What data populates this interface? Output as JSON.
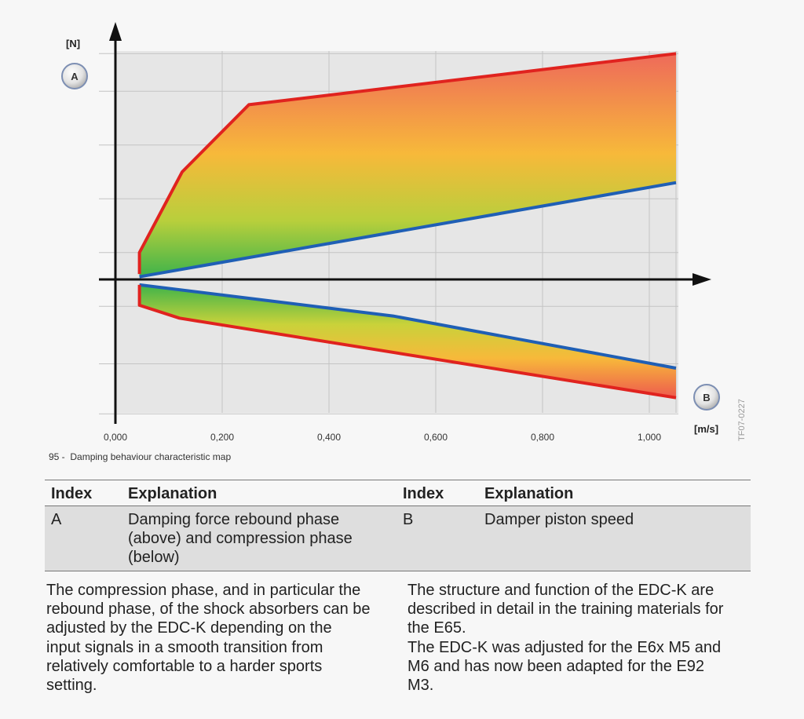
{
  "figure": {
    "number": "95 -",
    "caption": "Damping behaviour characteristic map",
    "reference_code": "TF07-0227"
  },
  "chart_data": {
    "type": "area",
    "y_unit_label": "[N]",
    "x_unit_label": "[m/s]",
    "axis_markers": {
      "y": "A",
      "x": "B"
    },
    "x_ticks": [
      "0,000",
      "0,200",
      "0,400",
      "0,600",
      "0,800",
      "1,000"
    ],
    "xlim": [
      0,
      1.05
    ],
    "ylim": [
      -2.5,
      4.2
    ],
    "grid": true,
    "series": [
      {
        "name": "rebound-upper",
        "color": "#e0231f",
        "x": [
          0.045,
          0.045,
          0.125,
          0.25,
          1.05
        ],
        "y": [
          0.1,
          0.5,
          2.0,
          3.25,
          4.2
        ]
      },
      {
        "name": "rebound-lower",
        "color": "#1f5fb5",
        "x": [
          0.045,
          1.05
        ],
        "y": [
          0.05,
          1.8
        ]
      },
      {
        "name": "compression-upper",
        "color": "#1f5fb5",
        "x": [
          0.045,
          0.52,
          1.05
        ],
        "y": [
          -0.1,
          -0.68,
          -1.65
        ]
      },
      {
        "name": "compression-lower",
        "color": "#e0231f",
        "x": [
          0.045,
          0.045,
          0.12,
          1.05
        ],
        "y": [
          -0.1,
          -0.48,
          -0.72,
          -2.2
        ]
      }
    ]
  },
  "legend_table": {
    "headers": [
      "Index",
      "Explanation",
      "Index",
      "Explanation"
    ],
    "rows": [
      [
        "A",
        "Damping force rebound phase (above) and compression phase (below)",
        "B",
        "Damper piston speed"
      ]
    ]
  },
  "body": {
    "left": "The compression phase, and in particular the\nrebound phase, of the shock absorbers can be\nadjusted by the EDC-K depending on the\ninput signals in a smooth transition from\nrelatively comfortable to a harder sports\nsetting.",
    "right": "The structure and function of the EDC-K are\ndescribed in detail in the training materials for\nthe E65.\nThe EDC-K was adjusted for the E6x M5 and\nM6 and has now been adapted for the E92\nM3."
  }
}
